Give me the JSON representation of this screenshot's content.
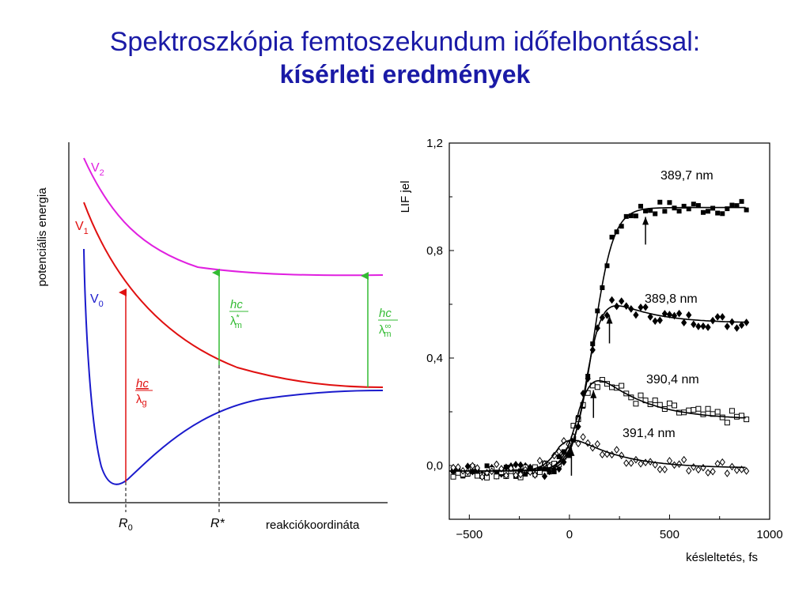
{
  "title": {
    "line1": "Spektroszkópia femtoszekundum időfelbontással:",
    "line2": "kísérleti eredmények"
  },
  "colors": {
    "title": "#1a1aa6",
    "V0": "#1a1acc",
    "V1": "#e01010",
    "V2": "#e020e0",
    "green": "#33bb33"
  },
  "left_diagram": {
    "ylabel": "potenciális energia",
    "xlabel": "reakciókoordináta",
    "curves": {
      "V2": "V",
      "V2_sub": "2",
      "V1": "V",
      "V1_sub": "1",
      "V0": "V",
      "V0_sub": "0"
    },
    "ticks": {
      "R0": "R",
      "R0_sub": "0",
      "Rstar": "R*"
    },
    "arrows": {
      "red_num": "hc",
      "red_den": "λ",
      "red_den_sub": "g",
      "green1_num": "hc",
      "green1_den": "λ",
      "green1_sub": "m",
      "green1_sup": "*",
      "green2_num": "hc",
      "green2_den": "λ",
      "green2_sub": "m",
      "green2_sup": "∞"
    }
  },
  "chart_data": {
    "type": "scatter",
    "xlabel": "késleltetés, fs",
    "ylabel": "LIF jel",
    "xlim": [
      -600,
      1000
    ],
    "ylim": [
      -0.2,
      1.2
    ],
    "xticks": [
      -500,
      0,
      500,
      1000
    ],
    "xtick_labels": [
      "−500",
      "0",
      "500",
      "1000"
    ],
    "yticks": [
      0.0,
      0.4,
      0.8,
      1.2
    ],
    "ytick_labels": [
      "0,0",
      "0,4",
      "0,8",
      "1,2"
    ],
    "series": [
      {
        "name": "389,7 nm",
        "marker": "square-filled",
        "plateau": 0.98,
        "peak": 1.0,
        "center": 120,
        "width": 110,
        "decay": 9999,
        "arrow_x": 380
      },
      {
        "name": "389,8 nm",
        "marker": "diamond-filled",
        "plateau": 0.55,
        "peak": 0.72,
        "center": 90,
        "width": 90,
        "decay": 200,
        "arrow_x": 200
      },
      {
        "name": "390,4 nm",
        "marker": "square-open",
        "plateau": 0.19,
        "peak": 0.46,
        "center": 50,
        "width": 90,
        "decay": 230,
        "arrow_x": 120
      },
      {
        "name": "391,4 nm",
        "marker": "diamond-open",
        "plateau": 0.01,
        "peak": 0.18,
        "center": -50,
        "width": 90,
        "decay": 230,
        "arrow_x": 10
      }
    ]
  }
}
